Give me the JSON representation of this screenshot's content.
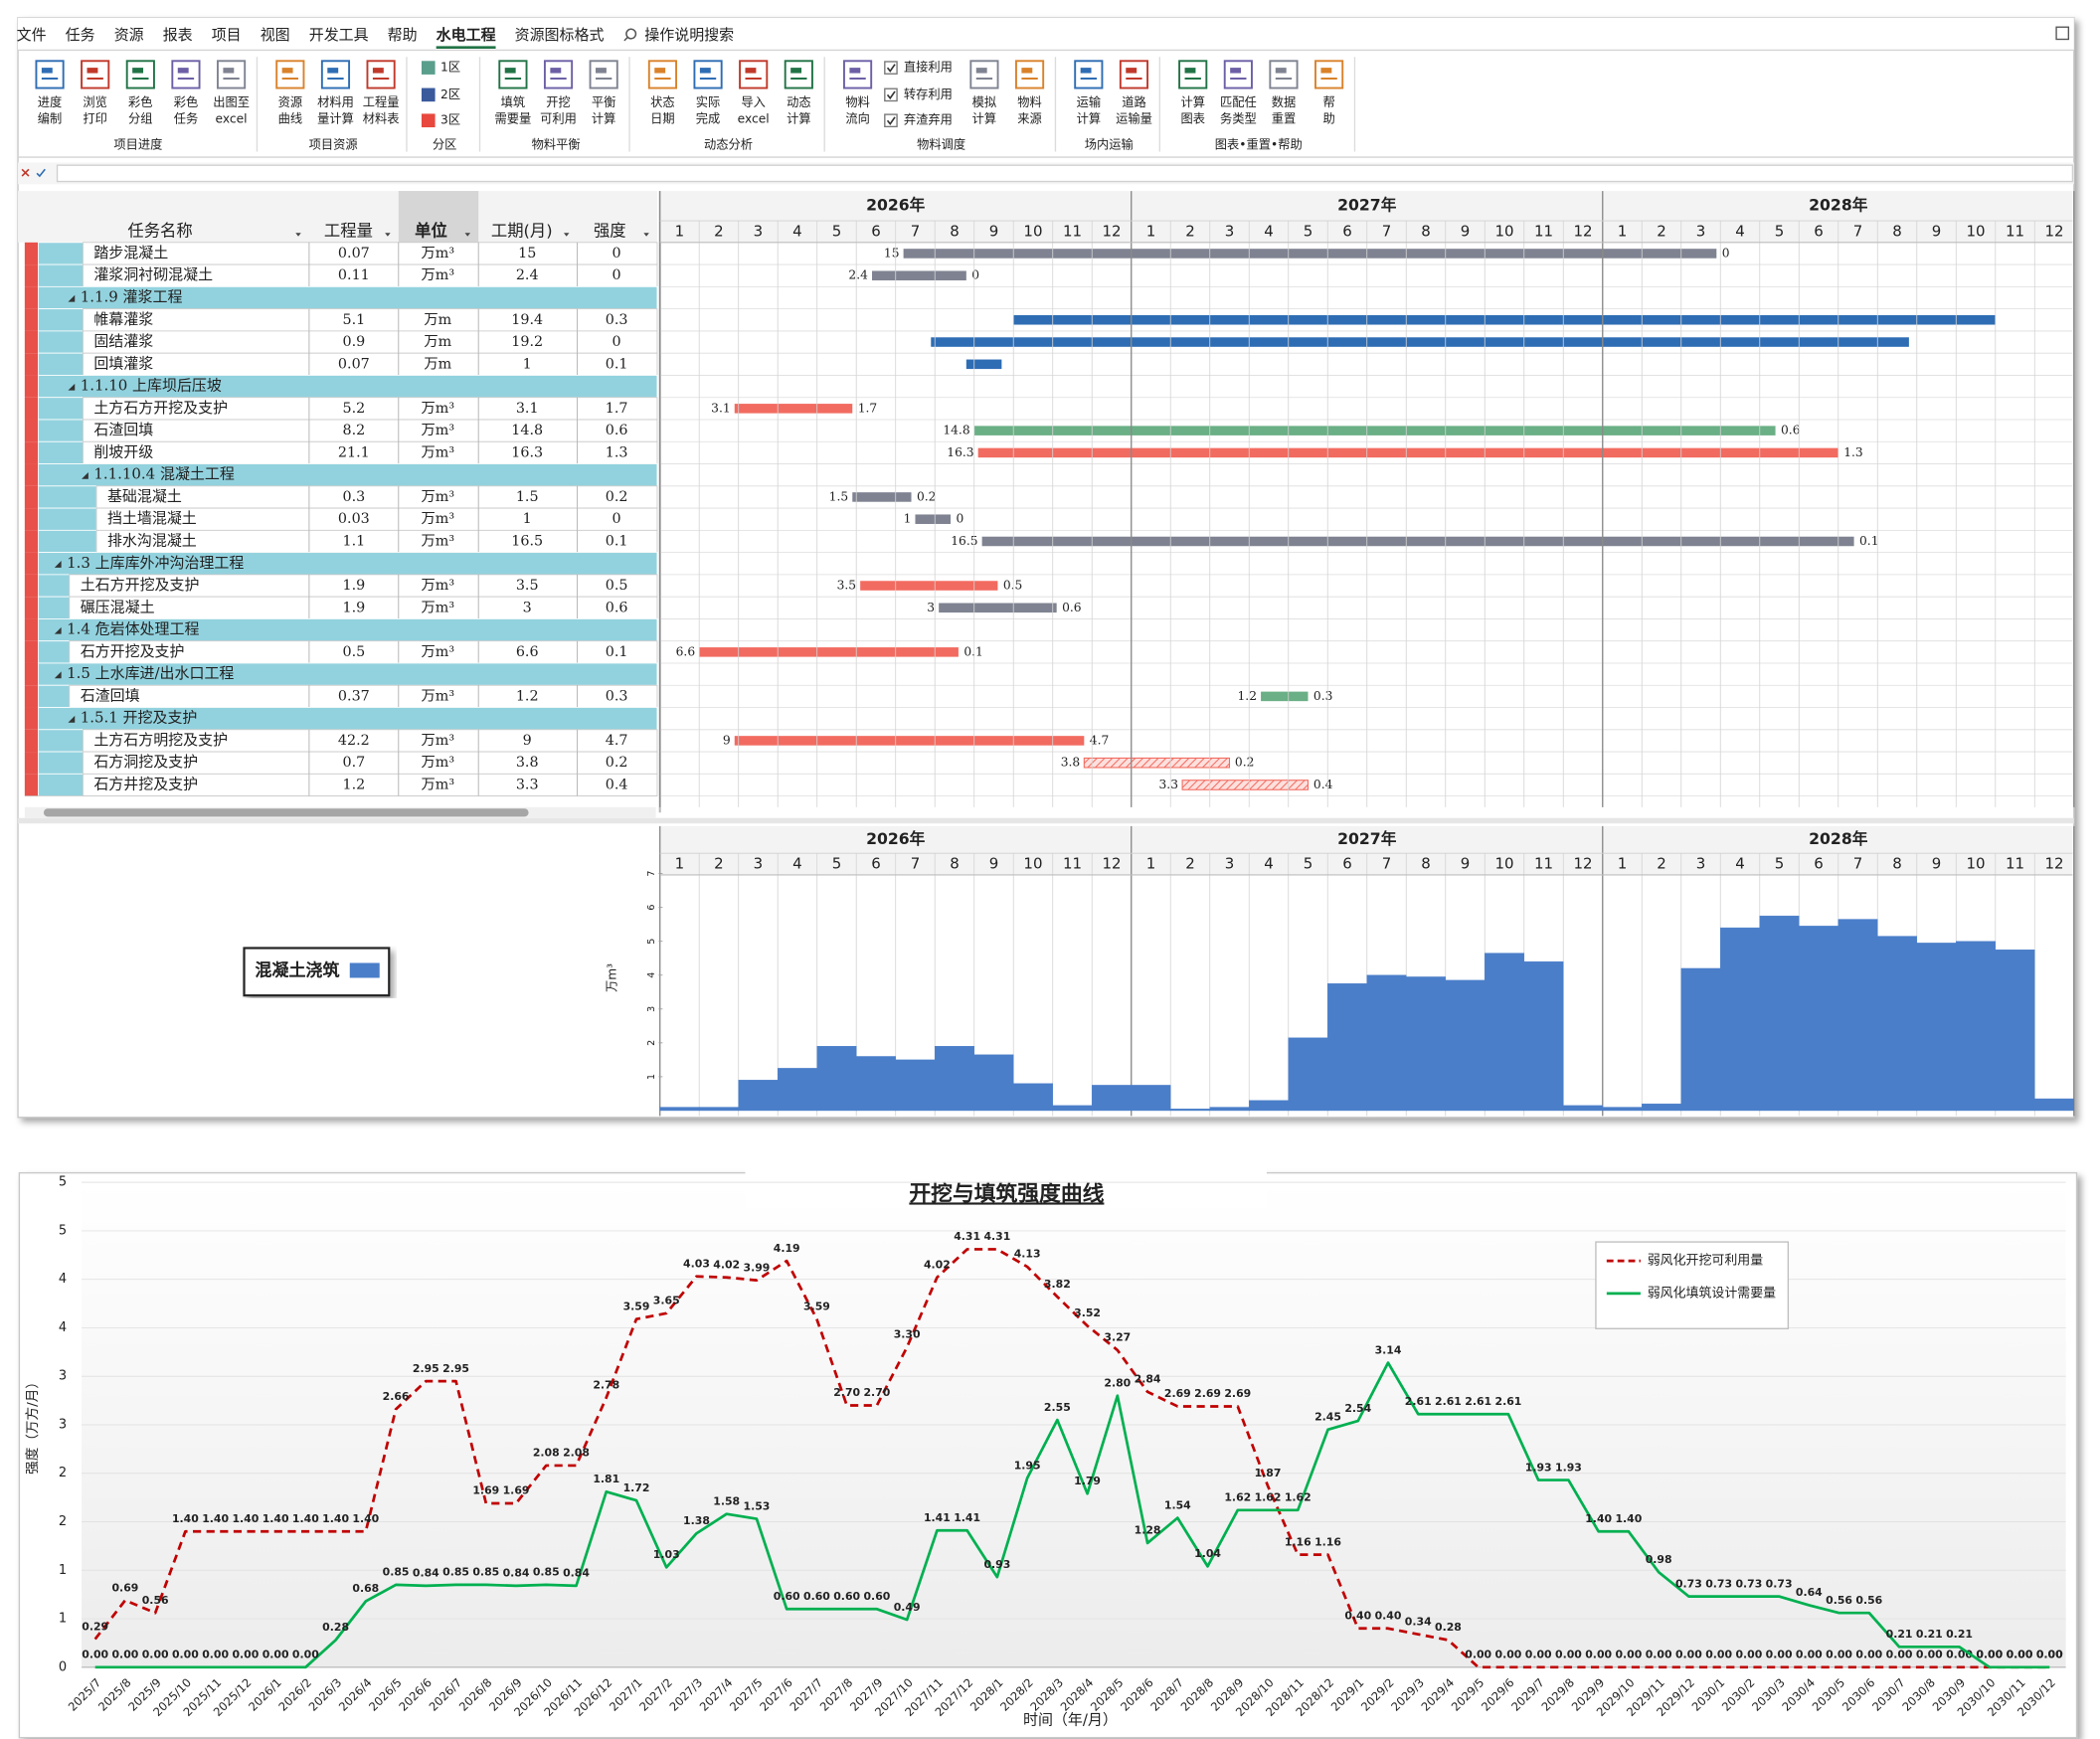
{
  "ribbon": {
    "tabs": [
      {
        "label": "文件"
      },
      {
        "label": "任务"
      },
      {
        "label": "资源"
      },
      {
        "label": "报表"
      },
      {
        "label": "项目"
      },
      {
        "label": "视图"
      },
      {
        "label": "开发工具"
      },
      {
        "label": "帮助"
      },
      {
        "label": "水电工程",
        "active": true
      },
      {
        "label": "资源图标格式",
        "contextual": true
      }
    ],
    "search": "操作说明搜索",
    "groups": [
      {
        "label": "项目进度",
        "buttons": [
          {
            "lines": [
              "进度",
              "编制"
            ]
          },
          {
            "lines": [
              "浏览",
              "打印"
            ]
          },
          {
            "lines": [
              "彩色",
              "分组"
            ]
          },
          {
            "lines": [
              "彩色",
              "任务"
            ]
          },
          {
            "lines": [
              "出图至",
              "excel"
            ]
          }
        ]
      },
      {
        "label": "项目资源",
        "buttons": [
          {
            "lines": [
              "资源",
              "曲线"
            ]
          },
          {
            "lines": [
              "材料用",
              "量计算"
            ]
          },
          {
            "lines": [
              "工程量",
              "材料表"
            ]
          }
        ]
      },
      {
        "label": "分区",
        "buttons": [
          {
            "label": "1区",
            "color": "#5a9e8c"
          },
          {
            "label": "2区",
            "color": "#3a5a9c"
          },
          {
            "label": "3区",
            "color": "#e8483d"
          }
        ]
      },
      {
        "label": "物料平衡",
        "buttons": [
          {
            "lines": [
              "填筑",
              "需要量"
            ]
          },
          {
            "lines": [
              "开挖",
              "可利用"
            ]
          },
          {
            "lines": [
              "平衡",
              "计算"
            ]
          }
        ]
      },
      {
        "label": "动态分析",
        "buttons": [
          {
            "lines": [
              "状态",
              "日期"
            ]
          },
          {
            "lines": [
              "实际",
              "完成"
            ]
          },
          {
            "lines": [
              "导入",
              "excel"
            ]
          },
          {
            "lines": [
              "动态",
              "计算"
            ]
          }
        ]
      },
      {
        "label": "物料调度",
        "buttons": [
          {
            "lines": [
              "物料",
              "流向"
            ]
          },
          {
            "label": "直接利用",
            "checked": true
          },
          {
            "label": "转存利用",
            "checked": true
          },
          {
            "label": "弃渣弃用",
            "checked": true
          },
          {
            "lines": [
              "模拟",
              "计算"
            ]
          },
          {
            "lines": [
              "物料",
              "来源"
            ]
          }
        ]
      },
      {
        "label": "场内运输",
        "buttons": [
          {
            "lines": [
              "运输",
              "计算"
            ]
          },
          {
            "lines": [
              "道路",
              "运输量"
            ]
          }
        ]
      },
      {
        "label": "图表•重置•帮助",
        "buttons": [
          {
            "lines": [
              "计算",
              "图表"
            ]
          },
          {
            "lines": [
              "匹配任",
              "务类型"
            ]
          },
          {
            "lines": [
              "数据",
              "重置"
            ]
          },
          {
            "lines": [
              "帮",
              "助"
            ]
          }
        ]
      }
    ]
  },
  "table": {
    "headers": [
      "任务名称",
      "工程量",
      "单位",
      "工期(月)",
      "强度"
    ],
    "rows": [
      {
        "name": "踏步混凝土",
        "qty": 0.07,
        "unit": "万m³",
        "duration": 15,
        "intensity": 0,
        "start": 6.2,
        "end": 26.9,
        "color": "#7f8391"
      },
      {
        "name": "灌浆洞衬砌混凝土",
        "qty": 0.11,
        "unit": "万m³",
        "duration": 2.4,
        "intensity": 0,
        "start": 5.4,
        "end": 7.8,
        "color": "#7f8391"
      },
      {
        "name": "1.1.9  灌浆工程"
      },
      {
        "name": "帷幕灌浆",
        "qty": 5.1,
        "unit": "万m",
        "duration": 19.4,
        "intensity": 0.3,
        "start": 9.0,
        "end": 34.0,
        "color": "#2e6db4",
        "bar_labels": false
      },
      {
        "name": "固结灌浆",
        "qty": 0.9,
        "unit": "万m",
        "duration": 19.2,
        "intensity": 0,
        "start": 6.9,
        "end": 31.8,
        "color": "#2e6db4",
        "bar_labels": false
      },
      {
        "name": "回填灌浆",
        "qty": 0.07,
        "unit": "万m",
        "duration": 1,
        "intensity": 0.1,
        "start": 7.8,
        "end": 8.7,
        "color": "#2e6db4",
        "bar_labels": false
      },
      {
        "name": "1.1.10  上库坝后压坡"
      },
      {
        "name": "土方石方开挖及支护",
        "qty": 5.2,
        "unit": "万m³",
        "duration": 3.1,
        "intensity": 1.7,
        "start": 1.9,
        "end": 4.9,
        "color": "#f26b60"
      },
      {
        "name": "石渣回填",
        "qty": 8.2,
        "unit": "万m³",
        "duration": 14.8,
        "intensity": 0.6,
        "start": 8.0,
        "end": 28.4,
        "color": "#6aaf85"
      },
      {
        "name": "削坡开级",
        "qty": 21.1,
        "unit": "万m³",
        "duration": 16.3,
        "intensity": 1.3,
        "start": 8.1,
        "end": 30.0,
        "color": "#f26b60"
      },
      {
        "name": "1.1.10.4  混凝土工程"
      },
      {
        "name": "基础混凝土",
        "qty": 0.3,
        "unit": "万m³",
        "duration": 1.5,
        "intensity": 0.2,
        "start": 4.9,
        "end": 6.4,
        "color": "#7f8391"
      },
      {
        "name": "挡土墙混凝土",
        "qty": 0.03,
        "unit": "万m³",
        "duration": 1,
        "intensity": 0,
        "start": 6.5,
        "end": 7.4,
        "color": "#7f8391"
      },
      {
        "name": "排水沟混凝土",
        "qty": 1.1,
        "unit": "万m³",
        "duration": 16.5,
        "intensity": 0.1,
        "start": 8.2,
        "end": 30.4,
        "color": "#7f8391"
      },
      {
        "name": "1.3  上库库外冲沟治理工程"
      },
      {
        "name": "土石方开挖及支护",
        "qty": 1.9,
        "unit": "万m³",
        "duration": 3.5,
        "intensity": 0.5,
        "start": 5.1,
        "end": 8.6,
        "color": "#f26b60"
      },
      {
        "name": "碾压混凝土",
        "qty": 1.9,
        "unit": "万m³",
        "duration": 3,
        "intensity": 0.6,
        "start": 7.1,
        "end": 10.1,
        "color": "#7f8391"
      },
      {
        "name": "1.4  危岩体处理工程"
      },
      {
        "name": "石方开挖及支护",
        "qty": 0.5,
        "unit": "万m³",
        "duration": 6.6,
        "intensity": 0.1,
        "start": 1.0,
        "end": 7.6,
        "color": "#f26b60"
      },
      {
        "name": "1.5  上水库进/出水口工程"
      },
      {
        "name": "石渣回填",
        "qty": 0.37,
        "unit": "万m³",
        "duration": 1.2,
        "intensity": 0.3,
        "start": 15.3,
        "end": 16.5,
        "color": "#6aaf85"
      },
      {
        "name": "1.5.1  开挖及支护"
      },
      {
        "name": "土方石方明挖及支护",
        "qty": 42.2,
        "unit": "万m³",
        "duration": 9,
        "intensity": 4.7,
        "start": 1.9,
        "end": 10.8,
        "color": "#f26b60"
      },
      {
        "name": "石方洞挖及支护",
        "qty": 0.7,
        "unit": "万m³",
        "duration": 3.8,
        "intensity": 0.2,
        "start": 10.8,
        "end": 14.5,
        "color": "#f26b60",
        "pattern": "hatch"
      },
      {
        "name": "石方井挖及支护",
        "qty": 1.2,
        "unit": "万m³",
        "duration": 3.3,
        "intensity": 0.4,
        "start": 13.3,
        "end": 16.5,
        "color": "#f26b60",
        "pattern": "hatch"
      }
    ]
  },
  "gantt": {
    "years": [
      "2026年",
      "2027年",
      "2028年"
    ],
    "months": [
      1,
      2,
      3,
      4,
      5,
      6,
      7,
      8,
      9,
      10,
      11,
      12
    ]
  },
  "chart_data": [
    {
      "type": "bar",
      "y_label": "万m³",
      "ylim": [
        0,
        7
      ],
      "yticks": [
        1,
        2,
        3,
        4,
        5,
        6,
        7
      ],
      "series": [
        {
          "name": "混凝土浇筑",
          "color": "#4a7ec9",
          "values": [
            0.1,
            0.1,
            0.9,
            1.25,
            1.9,
            1.6,
            1.5,
            1.9,
            1.65,
            0.8,
            0.15,
            0.75,
            0.75,
            0.05,
            0.1,
            0.3,
            2.15,
            3.75,
            4.0,
            3.95,
            3.85,
            4.65,
            4.4,
            0.15,
            0.1,
            0.2,
            4.2,
            5.4,
            5.75,
            5.45,
            5.65,
            5.15,
            4.95,
            5.0,
            4.75,
            0.35
          ]
        }
      ]
    },
    {
      "type": "line",
      "title": "开挖与填筑强度曲线",
      "x_label": "时间（年/月）",
      "y_label": "强度（万方/月）",
      "ylim": [
        0,
        5
      ],
      "yticks": [
        0,
        {
          "value": 0.5,
          "label": "1"
        },
        1,
        {
          "value": 1.5,
          "label": "2"
        },
        2,
        {
          "value": 2.5,
          "label": "3"
        },
        3,
        {
          "value": 3.5,
          "label": "4"
        },
        4,
        {
          "value": 4.5,
          "label": "5"
        },
        5
      ],
      "grid": true,
      "legend": "top-right",
      "categories": [
        "2025/7",
        "2025/8",
        "2025/9",
        "2025/10",
        "2025/11",
        "2025/12",
        "2026/1",
        "2026/2",
        "2026/3",
        "2026/4",
        "2026/5",
        "2026/6",
        "2026/7",
        "2026/8",
        "2026/9",
        "2026/10",
        "2026/11",
        "2026/12",
        "2027/1",
        "2027/2",
        "2027/3",
        "2027/4",
        "2027/5",
        "2027/6",
        "2027/7",
        "2027/8",
        "2027/9",
        "2027/10",
        "2027/11",
        "2027/12",
        "2028/1",
        "2028/2",
        "2028/3",
        "2028/4",
        "2028/5",
        "2028/6",
        "2028/7",
        "2028/8",
        "2028/9",
        "2028/10",
        "2028/11",
        "2028/12",
        "2029/1",
        "2029/2",
        "2029/3",
        "2029/4",
        "2029/5",
        "2029/6",
        "2029/7",
        "2029/8",
        "2029/9",
        "2029/10",
        "2029/11",
        "2029/12",
        "2030/1",
        "2030/2",
        "2030/3",
        "2030/4",
        "2030/5",
        "2030/6",
        "2030/7",
        "2030/8",
        "2030/9",
        "2030/10",
        "2030/11",
        "2030/12"
      ],
      "series": [
        {
          "name": "弱风化开挖可利用量",
          "color": "#c00000",
          "dashed": true,
          "values": [
            0.29,
            0.69,
            0.56,
            1.4,
            1.4,
            1.4,
            1.4,
            1.4,
            1.4,
            1.4,
            2.66,
            2.95,
            2.95,
            1.69,
            1.69,
            2.08,
            2.08,
            2.78,
            3.59,
            3.65,
            4.03,
            4.02,
            3.99,
            4.19,
            3.59,
            2.7,
            2.7,
            3.3,
            4.02,
            4.31,
            4.31,
            4.13,
            3.82,
            3.52,
            3.27,
            2.84,
            2.69,
            2.69,
            2.69,
            1.87,
            1.16,
            1.16,
            0.4,
            0.4,
            0.34,
            0.28,
            0,
            0,
            0,
            0,
            0,
            0,
            0,
            0,
            0,
            0,
            0,
            0,
            0,
            0,
            0,
            0,
            0,
            0,
            0,
            0
          ],
          "value_labels": [
            "0.29",
            "0.69",
            "0.56",
            "1.40",
            "1.40",
            "1.40",
            "1.40",
            "1.40",
            "1.40",
            "1.40",
            "2.66",
            "2.95",
            "2.95",
            "1.69",
            "1.69",
            "2.08",
            "2.08",
            "2.78",
            "3.59",
            "3.65",
            "4.03",
            "4.02",
            "3.99",
            "4.19",
            "3.59",
            "2.70",
            "2.70",
            "3.30",
            "4.02",
            "4.31",
            "4.31",
            "4.13",
            "3.82",
            "3.52",
            "3.27",
            "2.84",
            "2.69",
            "2.69",
            "2.69",
            "1.87",
            "1.16",
            "1.16",
            "0.40",
            "0.40",
            "0.34",
            "0.28",
            "0.00",
            "0.00",
            "0.00",
            "0.00",
            "0.00",
            "0.00",
            "0.00",
            "0.00",
            "0.00",
            "0.00",
            "0.00",
            "0.00",
            "0.00",
            "0.00",
            "0.00",
            "0.00",
            "0.00",
            "0.00",
            "0.00",
            "0.00"
          ]
        },
        {
          "name": "弱风化填筑设计需要量",
          "color": "#00b050",
          "values": [
            0,
            0,
            0,
            0,
            0,
            0,
            0,
            0,
            0.28,
            0.68,
            0.85,
            0.84,
            0.85,
            0.85,
            0.84,
            0.85,
            0.84,
            1.81,
            1.72,
            1.03,
            1.38,
            1.58,
            1.53,
            0.6,
            0.6,
            0.6,
            0.6,
            0.49,
            1.41,
            1.41,
            0.93,
            1.95,
            2.55,
            1.79,
            2.8,
            1.28,
            1.54,
            1.04,
            1.62,
            1.62,
            1.62,
            2.45,
            2.54,
            3.14,
            2.61,
            2.61,
            2.61,
            2.61,
            1.93,
            1.93,
            1.4,
            1.4,
            0.98,
            0.73,
            0.73,
            0.73,
            0.73,
            0.64,
            0.56,
            0.56,
            0.21,
            0.21,
            0.21,
            0,
            0,
            0
          ],
          "value_labels": [
            "0.00",
            "0.00",
            "0.00",
            "0.00",
            "0.00",
            "0.00",
            "0.00",
            "0.00",
            "0.28",
            "0.68",
            "0.85",
            "0.84",
            "0.85",
            "0.85",
            "0.84",
            "0.85",
            "0.84",
            "1.81",
            "1.72",
            "1.03",
            "1.38",
            "1.58",
            "1.53",
            "0.60",
            "0.60",
            "0.60",
            "0.60",
            "0.49",
            "1.41",
            "1.41",
            "0.93",
            "1.95",
            "2.55",
            "1.79",
            "2.80",
            "1.28",
            "1.54",
            "1.04",
            "1.62",
            "1.62",
            "1.62",
            "2.45",
            "2.54",
            "3.14",
            "2.61",
            "2.61",
            "2.61",
            "2.61",
            "1.93",
            "1.93",
            "1.40",
            "1.40",
            "0.98",
            "0.73",
            "0.73",
            "0.73",
            "0.73",
            "0.64",
            "0.56",
            "0.56",
            "0.21",
            "0.21",
            "0.21",
            "0.00",
            "0.00",
            "0.00"
          ]
        }
      ]
    }
  ]
}
